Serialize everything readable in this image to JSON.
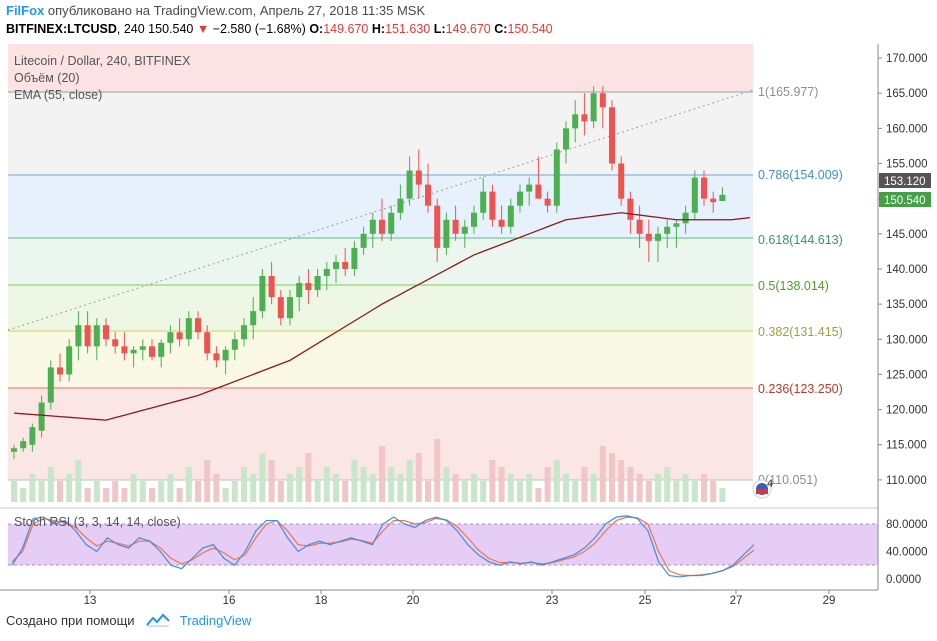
{
  "header": {
    "brand": "FilFox",
    "published": "опубликовано на TradingView.com, Апрель 27, 2018 11:35 MSK",
    "symbol": "BITFINEX:LTCUSD",
    "interval": "240",
    "last": "150.540",
    "change": "−2.580 (−1.68%)",
    "o_label": "O:",
    "o_value": "149.670",
    "h_label": "H:",
    "h_value": "151.630",
    "l_label": "L:",
    "l_value": "149.670",
    "c_label": "C:",
    "c_value": "150.540"
  },
  "legend": {
    "title": "Litecoin / Dollar, 240, BITFINEX",
    "volume": "Объём (20)",
    "ema": "EMA (55, close)",
    "stoch": "Stoch RSI (3, 3, 14, 14, close)"
  },
  "price_scale": [
    "170.000",
    "165.000",
    "160.000",
    "155.000",
    "150.000",
    "145.000",
    "140.000",
    "135.000",
    "130.000",
    "125.000",
    "120.000",
    "115.000",
    "110.000"
  ],
  "stoch_scale": [
    "80.0000",
    "40.0000",
    "0.0000"
  ],
  "x_labels": [
    "13",
    "16",
    "18",
    "20",
    "23",
    "25",
    "27",
    "29"
  ],
  "price_badges": {
    "high": "153.120",
    "last": "150.540"
  },
  "fib_labels": {
    "f1": "1(165.977)",
    "f786": "0.786(154.009)",
    "f618": "0.618(144.613)",
    "f5": "0.5(138.014)",
    "f382": "0.382(131.415)",
    "f236": "0.236(123.250)",
    "f0": "0(110.051)"
  },
  "colors": {
    "up": "#4caf50",
    "down": "#ef5350",
    "ema": "#8b1a1a",
    "stoch_k": "#3f8fe0",
    "stoch_d": "#f2734a",
    "stoch_band": "#e6cdf5"
  },
  "flag_badge": "4",
  "footer": {
    "created": "Создано при помощи",
    "brand": "TradingView"
  },
  "chart_data": [
    {
      "type": "candlestick",
      "title": "Litecoin / Dollar, 240, BITFINEX",
      "y_range": [
        106,
        172
      ],
      "x_ticks": [
        "13",
        "16",
        "18",
        "20",
        "23",
        "25",
        "27",
        "29"
      ],
      "candles": [
        [
          114,
          115,
          113,
          114.5
        ],
        [
          114.5,
          116,
          114,
          115.5
        ],
        [
          115,
          118,
          114,
          117.5
        ],
        [
          117,
          122,
          116,
          121
        ],
        [
          121,
          127,
          120,
          126
        ],
        [
          126,
          128,
          124,
          125
        ],
        [
          125,
          130,
          124,
          129
        ],
        [
          129,
          134,
          127,
          132
        ],
        [
          132,
          134,
          128,
          129
        ],
        [
          129,
          133,
          127,
          132
        ],
        [
          132,
          133,
          129,
          130
        ],
        [
          130,
          131,
          128,
          129
        ],
        [
          129,
          131,
          127,
          128
        ],
        [
          128,
          129,
          126,
          128.5
        ],
        [
          128.5,
          130,
          127,
          129
        ],
        [
          129,
          130,
          127,
          127.5
        ],
        [
          127.5,
          130,
          126,
          129.5
        ],
        [
          129.5,
          132,
          128,
          131
        ],
        [
          131,
          133,
          129,
          130
        ],
        [
          130,
          134,
          129,
          133
        ],
        [
          133,
          134,
          130,
          131
        ],
        [
          131,
          132,
          127,
          128
        ],
        [
          128,
          129,
          126,
          127
        ],
        [
          127,
          129,
          125,
          128.5
        ],
        [
          128.5,
          131,
          127,
          130
        ],
        [
          130,
          133,
          129,
          132
        ],
        [
          132,
          136,
          130,
          134
        ],
        [
          134,
          140,
          133,
          139
        ],
        [
          139,
          141,
          135,
          136
        ],
        [
          136,
          137,
          132,
          133
        ],
        [
          133,
          137,
          132,
          136
        ],
        [
          136,
          139,
          134,
          138
        ],
        [
          138,
          140,
          135,
          137
        ],
        [
          137,
          140,
          136,
          139
        ],
        [
          139,
          141,
          137,
          140
        ],
        [
          140,
          142,
          138,
          141
        ],
        [
          141,
          143,
          139,
          140
        ],
        [
          140,
          144,
          139,
          143
        ],
        [
          143,
          146,
          142,
          145
        ],
        [
          145,
          148,
          143,
          147
        ],
        [
          147,
          150,
          144,
          145
        ],
        [
          145,
          149,
          144,
          148
        ],
        [
          148,
          152,
          147,
          150
        ],
        [
          150,
          156,
          149,
          154
        ],
        [
          154,
          157,
          150,
          152
        ],
        [
          152,
          155,
          148,
          149
        ],
        [
          149,
          150,
          141,
          143
        ],
        [
          143,
          148,
          142,
          147
        ],
        [
          147,
          149,
          144,
          145
        ],
        [
          145,
          147,
          143,
          146
        ],
        [
          146,
          149,
          145,
          148
        ],
        [
          148,
          153,
          147,
          151
        ],
        [
          151,
          152,
          146,
          147
        ],
        [
          147,
          149,
          145,
          146
        ],
        [
          146,
          150,
          145,
          149
        ],
        [
          149,
          152,
          148,
          151
        ],
        [
          151,
          153,
          149,
          152
        ],
        [
          152,
          156,
          150,
          150
        ],
        [
          150,
          151,
          148,
          149
        ],
        [
          149,
          158,
          148,
          157
        ],
        [
          157,
          161,
          155,
          160
        ],
        [
          160,
          164,
          158,
          162
        ],
        [
          162,
          165,
          159,
          161
        ],
        [
          161,
          166,
          160,
          165
        ],
        [
          165,
          166,
          160,
          163
        ],
        [
          163,
          164,
          154,
          155
        ],
        [
          155,
          156,
          149,
          150
        ],
        [
          150,
          151,
          145,
          147
        ],
        [
          147,
          149,
          143,
          145
        ],
        [
          145,
          147,
          141,
          144
        ],
        [
          144,
          146,
          141,
          145
        ],
        [
          145,
          147,
          143,
          146
        ],
        [
          146,
          147,
          143,
          146.5
        ],
        [
          146.5,
          149,
          145,
          148
        ],
        [
          148,
          154,
          147,
          153
        ],
        [
          153,
          154,
          149,
          150
        ],
        [
          150,
          151,
          148,
          149.5
        ],
        [
          149.67,
          151.63,
          149.67,
          150.54
        ]
      ],
      "ema_points": [
        [
          0,
          119.5
        ],
        [
          10,
          118.5
        ],
        [
          20,
          122
        ],
        [
          30,
          127
        ],
        [
          40,
          135
        ],
        [
          50,
          142
        ],
        [
          60,
          147
        ],
        [
          66,
          148
        ],
        [
          72,
          147
        ],
        [
          78,
          147
        ],
        [
          80,
          147.3
        ]
      ],
      "volume": [
        3,
        2,
        4,
        3,
        5,
        3,
        4,
        6,
        2,
        3,
        2,
        3,
        2,
        4,
        3,
        2,
        3,
        4,
        2,
        5,
        3,
        6,
        4,
        2,
        3,
        5,
        4,
        7,
        6,
        3,
        4,
        5,
        7,
        3,
        5,
        4,
        3,
        6,
        5,
        4,
        8,
        5,
        4,
        6,
        7,
        3,
        9,
        5,
        4,
        3,
        4,
        3,
        6,
        5,
        4,
        3,
        4,
        2,
        5,
        6,
        4,
        3,
        5,
        4,
        8,
        7,
        6,
        5,
        4,
        3,
        4,
        5,
        3,
        4,
        3,
        4,
        3,
        2
      ],
      "stoch_k": [
        20,
        45,
        88,
        90,
        80,
        85,
        70,
        50,
        40,
        60,
        50,
        45,
        60,
        55,
        40,
        20,
        15,
        30,
        45,
        50,
        30,
        20,
        40,
        70,
        85,
        85,
        60,
        40,
        50,
        55,
        50,
        55,
        60,
        55,
        50,
        80,
        90,
        80,
        75,
        85,
        90,
        85,
        70,
        50,
        35,
        25,
        20,
        25,
        22,
        25,
        20,
        25,
        30,
        35,
        45,
        60,
        80,
        90,
        92,
        88,
        70,
        25,
        5,
        3,
        5,
        5,
        8,
        12,
        20,
        35,
        50
      ],
      "stoch_d": [
        25,
        40,
        80,
        88,
        85,
        82,
        75,
        60,
        48,
        55,
        52,
        48,
        55,
        55,
        45,
        30,
        22,
        28,
        38,
        45,
        38,
        28,
        35,
        60,
        80,
        85,
        70,
        50,
        48,
        52,
        52,
        54,
        58,
        56,
        52,
        70,
        85,
        85,
        80,
        82,
        88,
        86,
        76,
        60,
        42,
        30,
        24,
        24,
        23,
        24,
        22,
        24,
        28,
        32,
        40,
        52,
        70,
        85,
        90,
        89,
        80,
        40,
        12,
        6,
        5,
        6,
        8,
        12,
        18,
        30,
        42
      ]
    }
  ]
}
